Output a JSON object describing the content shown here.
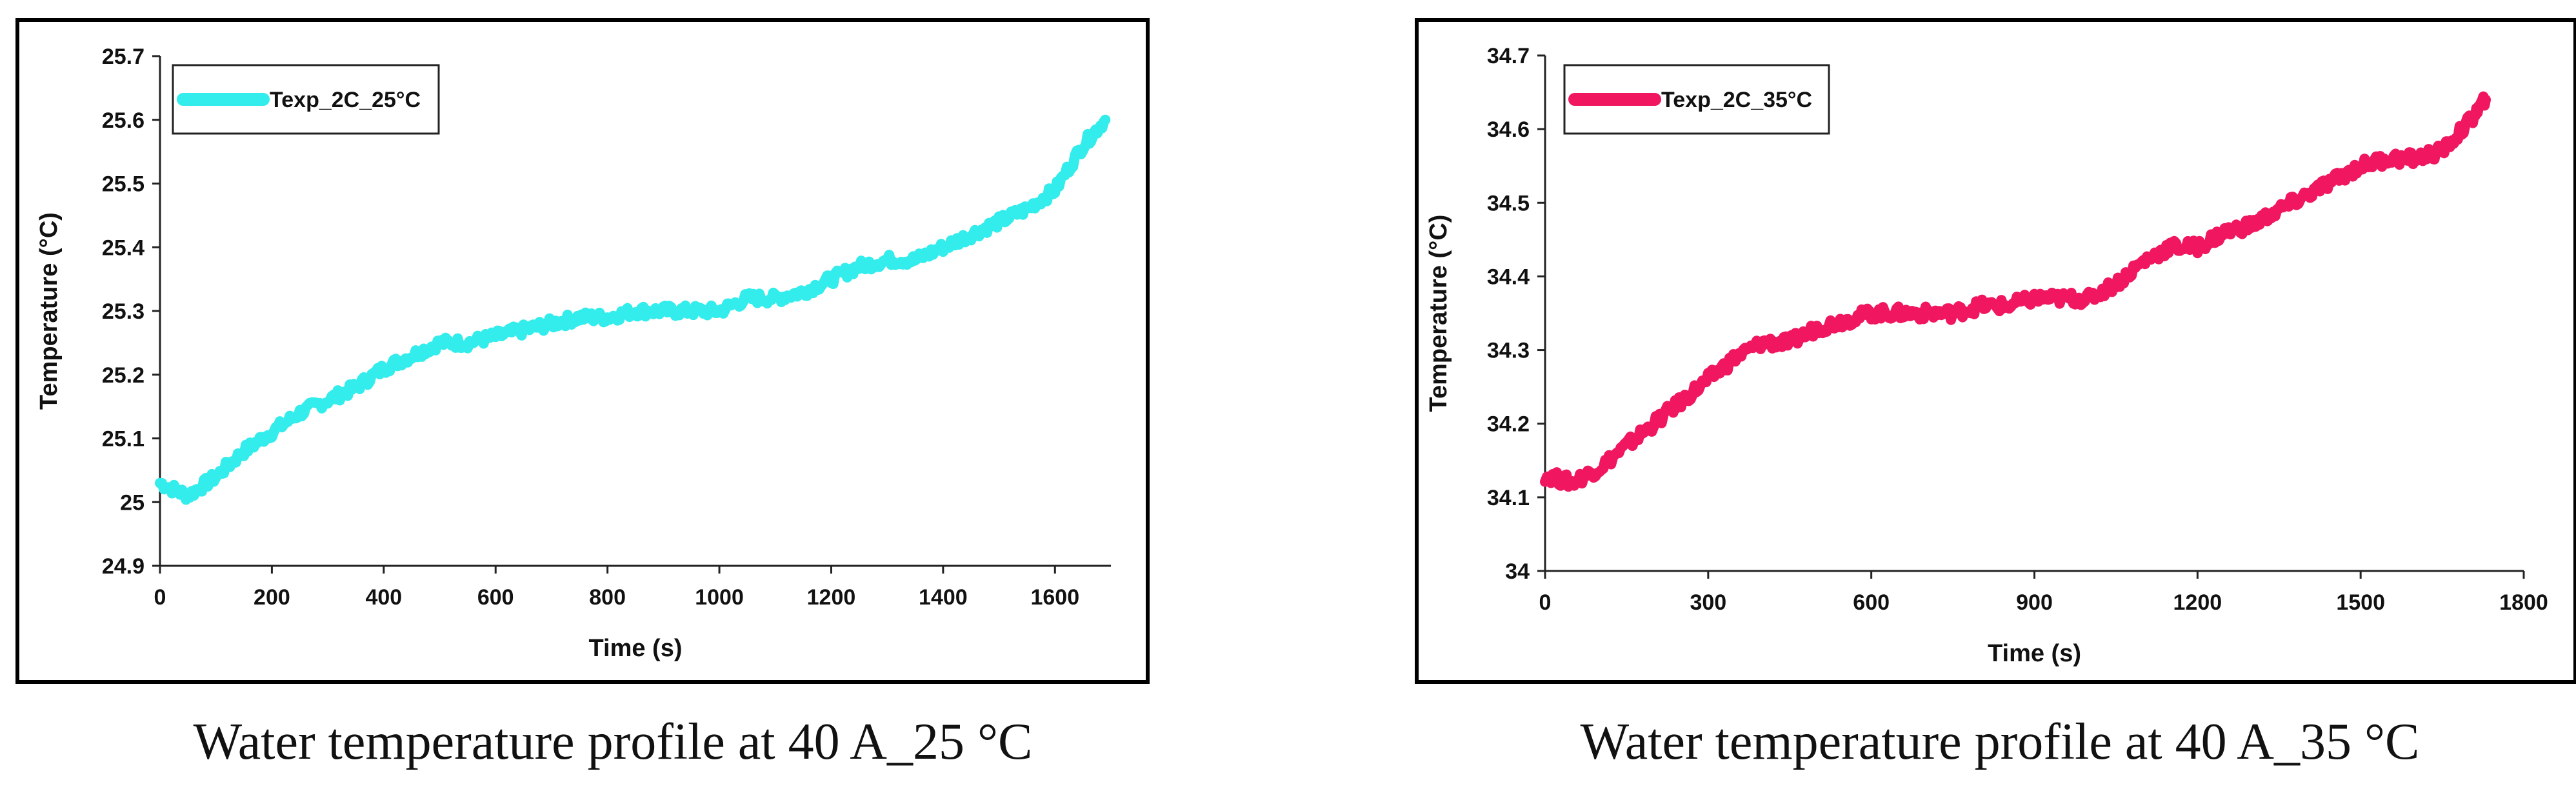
{
  "chart_data": [
    {
      "type": "line",
      "series": [
        {
          "name": "Texp_2C_25°C",
          "color": "#33ECEC",
          "x": [
            0,
            50,
            100,
            150,
            200,
            250,
            300,
            350,
            400,
            450,
            500,
            550,
            600,
            650,
            700,
            750,
            800,
            850,
            900,
            950,
            1000,
            1050,
            1100,
            1150,
            1200,
            1250,
            1300,
            1350,
            1400,
            1450,
            1500,
            1550,
            1600,
            1650,
            1690
          ],
          "values": [
            25.03,
            25.01,
            25.04,
            25.08,
            25.11,
            25.14,
            25.16,
            25.18,
            25.21,
            25.23,
            25.25,
            25.25,
            25.26,
            25.27,
            25.28,
            25.29,
            25.29,
            25.3,
            25.3,
            25.3,
            25.3,
            25.32,
            25.32,
            25.33,
            25.35,
            25.37,
            25.38,
            25.38,
            25.4,
            25.42,
            25.44,
            25.46,
            25.49,
            25.56,
            25.6
          ]
        }
      ],
      "title": "",
      "xlabel": "Time (s)",
      "ylabel": "Temperature (°C)",
      "xlim": [
        0,
        1700
      ],
      "ylim": [
        24.9,
        25.7
      ],
      "xticks": [
        "0",
        "200",
        "400",
        "600",
        "800",
        "1000",
        "1200",
        "1400",
        "1600"
      ],
      "yticks": [
        "24.9",
        "25",
        "25.1",
        "25.2",
        "25.3",
        "25.4",
        "25.5",
        "25.6",
        "25.7"
      ],
      "legend": "top-left",
      "grid": false
    },
    {
      "type": "line",
      "series": [
        {
          "name": "Texp_2C_35°C",
          "color": "#F0165F",
          "x": [
            0,
            50,
            100,
            150,
            200,
            250,
            300,
            350,
            400,
            450,
            500,
            550,
            600,
            650,
            700,
            750,
            800,
            850,
            900,
            950,
            1000,
            1050,
            1100,
            1150,
            1200,
            1250,
            1300,
            1350,
            1400,
            1450,
            1500,
            1550,
            1600,
            1650,
            1700,
            1730
          ],
          "values": [
            34.13,
            34.12,
            34.14,
            34.17,
            34.2,
            34.23,
            34.26,
            34.29,
            34.31,
            34.31,
            34.33,
            34.34,
            34.35,
            34.35,
            34.35,
            34.35,
            34.36,
            34.36,
            34.37,
            34.37,
            34.37,
            34.39,
            34.42,
            34.44,
            34.44,
            34.46,
            34.47,
            34.49,
            34.51,
            34.53,
            34.55,
            34.56,
            34.56,
            34.57,
            34.61,
            34.64
          ]
        }
      ],
      "title": "",
      "xlabel": "Time (s)",
      "ylabel": "Temperature (°C)",
      "xlim": [
        0,
        1800
      ],
      "ylim": [
        34,
        34.7
      ],
      "xticks": [
        "0",
        "300",
        "600",
        "900",
        "1200",
        "1500",
        "1800"
      ],
      "yticks": [
        "34",
        "34.1",
        "34.2",
        "34.3",
        "34.4",
        "34.5",
        "34.6",
        "34.7"
      ],
      "legend": "top-left",
      "grid": false
    }
  ],
  "captions": {
    "left": "Water temperature profile at 40 A_25 °C",
    "right": "Water temperature profile at 40 A_35 °C"
  }
}
